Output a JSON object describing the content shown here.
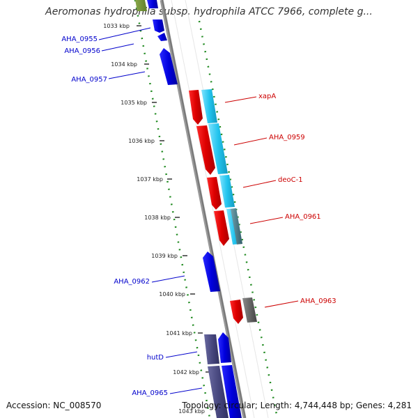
{
  "title": "Aeromonas hydrophila subsp. hydrophila ATCC 7966, complete g...",
  "footer": {
    "accession": "Accession: NC_008570",
    "topology": "Topology: circular; Length: 4,744,448 bp; Genes: 4,281"
  },
  "ticks": [
    "1033 kbp",
    "1034 kbp",
    "1035 kbp",
    "1036 kbp",
    "1037 kbp",
    "1038 kbp",
    "1039 kbp",
    "1040 kbp",
    "1041 kbp",
    "1042 kbp",
    "1043 kbp"
  ],
  "genes": [
    {
      "name": "AHA_0955",
      "strand": "minus",
      "color": "#0000cc"
    },
    {
      "name": "AHA_0956",
      "strand": "minus",
      "color": "#0000cc"
    },
    {
      "name": "AHA_0957",
      "strand": "minus",
      "color": "#0000cc"
    },
    {
      "name": "xapA",
      "strand": "plus",
      "color": "#cc0000"
    },
    {
      "name": "AHA_0959",
      "strand": "plus",
      "color": "#cc0000"
    },
    {
      "name": "deoC-1",
      "strand": "plus",
      "color": "#cc0000"
    },
    {
      "name": "AHA_0961",
      "strand": "plus",
      "color": "#cc0000"
    },
    {
      "name": "AHA_0962",
      "strand": "minus",
      "color": "#0000cc"
    },
    {
      "name": "AHA_0963",
      "strand": "plus",
      "color": "#cc0000"
    },
    {
      "name": "hutD",
      "strand": "minus",
      "color": "#0000cc"
    },
    {
      "name": "AHA_0965",
      "strand": "minus",
      "color": "#0000cc"
    }
  ],
  "colors": {
    "plus_cds": "#ee0000",
    "minus_cds": "#0000ee",
    "cog_cyan": "#22ccee",
    "cog_purple": "#55558f",
    "cog_gray": "#6a6a6a",
    "backbone": "#888888",
    "gc_dots": "#228b22"
  }
}
